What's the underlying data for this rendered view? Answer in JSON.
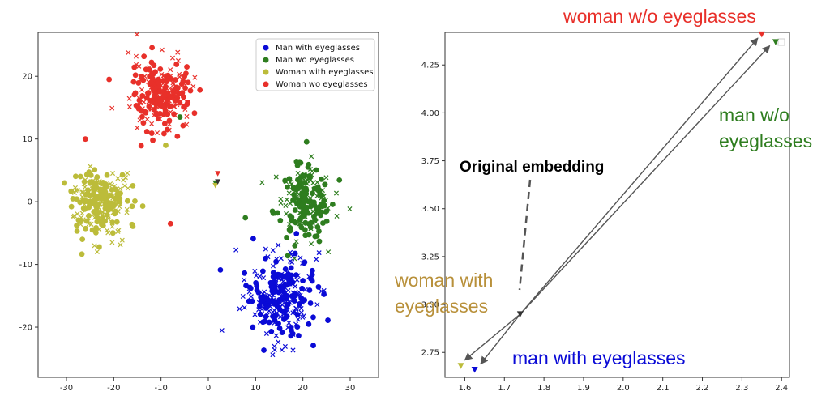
{
  "colors": {
    "man_with": "#0a0ad6",
    "man_wo": "#2e7d1f",
    "woman_with": "#bcbc3a",
    "woman_wo": "#e8302a",
    "axis": "#333333"
  },
  "chart_data": [
    {
      "type": "scatter",
      "xlim": [
        -36,
        36
      ],
      "ylim": [
        -28,
        27
      ],
      "x_ticks": [
        -30,
        -20,
        -10,
        0,
        10,
        20,
        30
      ],
      "y_ticks": [
        20,
        10,
        0,
        -10,
        -20
      ],
      "grid": false,
      "legend": {
        "placement": "top-right",
        "entries": [
          {
            "label": "Man with eyeglasses",
            "color_key": "man_with"
          },
          {
            "label": "Man wo eyeglasses",
            "color_key": "man_wo"
          },
          {
            "label": "Woman with eyeglasses",
            "color_key": "woman_with"
          },
          {
            "label": "Woman wo eyeglasses",
            "color_key": "woman_wo"
          }
        ]
      },
      "clusters": [
        {
          "name": "Man with eyeglasses",
          "color_key": "man_with",
          "center": [
            15,
            -15
          ],
          "spread": [
            6.5,
            6.5
          ],
          "n": 260
        },
        {
          "name": "Man wo eyeglasses",
          "color_key": "man_wo",
          "center": [
            20,
            0
          ],
          "spread": [
            5.5,
            5.5
          ],
          "n": 220
        },
        {
          "name": "Woman with eyeglasses",
          "color_key": "woman_with",
          "center": [
            -23,
            0
          ],
          "spread": [
            6,
            4.5
          ],
          "n": 240
        },
        {
          "name": "Woman wo eyeglasses",
          "color_key": "woman_wo",
          "center": [
            -10,
            17
          ],
          "spread": [
            6,
            5
          ],
          "n": 240
        }
      ],
      "outliers": [
        {
          "x": -6,
          "y": 13.5,
          "color_key": "man_wo"
        },
        {
          "x": -8,
          "y": -3.5,
          "color_key": "woman_wo"
        },
        {
          "x": -9,
          "y": 9,
          "color_key": "woman_with"
        },
        {
          "x": -26,
          "y": 10,
          "color_key": "woman_wo"
        },
        {
          "x": 22,
          "y": -11,
          "color_key": "man_with"
        }
      ],
      "triangles": [
        {
          "x": 2,
          "y": 4.5,
          "color_key": "woman_wo"
        },
        {
          "x": 1.5,
          "y": 3,
          "color_key": "man_wo"
        },
        {
          "x": 1.5,
          "y": 2.6,
          "color_key": "woman_with"
        },
        {
          "x": 2,
          "y": 3.2,
          "color_key": "axis"
        }
      ]
    },
    {
      "type": "scatter",
      "xlim": [
        1.55,
        2.42
      ],
      "ylim": [
        2.62,
        4.42
      ],
      "x_ticks": [
        1.6,
        1.7,
        1.8,
        1.9,
        2.0,
        2.1,
        2.2,
        2.3,
        2.4
      ],
      "y_ticks": [
        4.25,
        4.0,
        3.75,
        3.5,
        3.25,
        3.0,
        2.75
      ],
      "grid": false,
      "points": [
        {
          "label": "woman w/o eyeglasses",
          "x": 2.35,
          "y": 4.41,
          "color_key": "woman_wo"
        },
        {
          "label": "man w/o eyeglasses",
          "x": 2.385,
          "y": 4.37,
          "color_key": "man_wo"
        },
        {
          "label": "woman with eyeglasses",
          "x": 1.59,
          "y": 2.68,
          "color_key": "woman_with"
        },
        {
          "label": "man with eyeglasses",
          "x": 1.625,
          "y": 2.66,
          "color_key": "man_with"
        },
        {
          "label": "Original embedding",
          "x": 1.74,
          "y": 2.95,
          "color_key": "axis"
        }
      ],
      "arrows": [
        {
          "from": [
            1.74,
            2.95
          ],
          "to": [
            2.34,
            4.39
          ]
        },
        {
          "from": [
            1.74,
            2.95
          ],
          "to": [
            2.37,
            4.35
          ]
        },
        {
          "from": [
            1.74,
            2.95
          ],
          "to": [
            1.6,
            2.71
          ]
        },
        {
          "from": [
            1.74,
            2.95
          ],
          "to": [
            1.64,
            2.69
          ]
        }
      ],
      "annotations": {
        "woman_wo": "woman w/o eyeglasses",
        "man_wo_line1": "man w/o",
        "man_wo_line2": "eyeglasses",
        "woman_with_line1": "woman with",
        "woman_with_line2": "eyeglasses",
        "man_with": "man with eyeglasses",
        "original": "Original embedding"
      }
    }
  ]
}
